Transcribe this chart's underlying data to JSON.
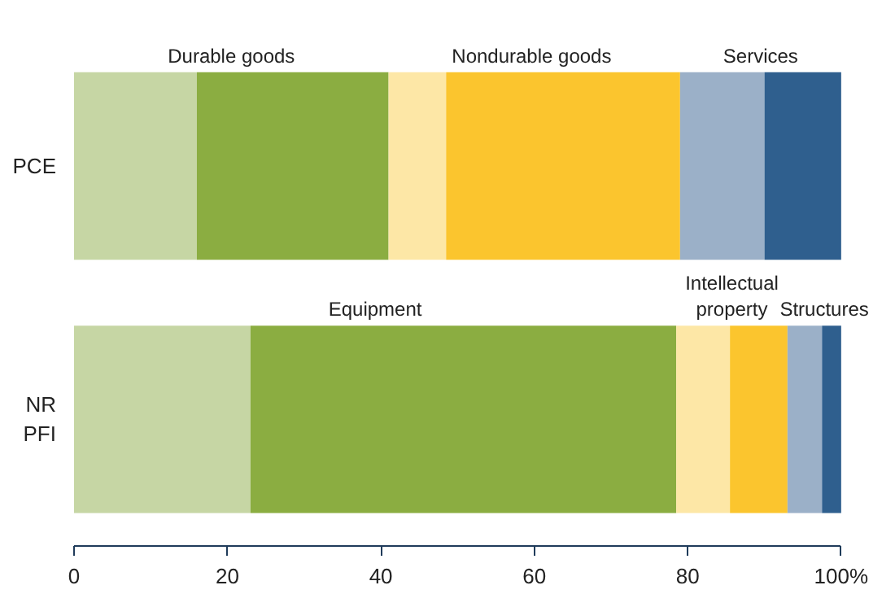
{
  "chart_data": {
    "type": "bar",
    "orientation": "horizontal",
    "stacked": true,
    "categories": [
      "PCE",
      "NR\nPFI"
    ],
    "series": [
      {
        "color": "#c6d6a4",
        "values": [
          16,
          23
        ]
      },
      {
        "color": "#8bad41",
        "values": [
          25,
          55.5
        ]
      },
      {
        "color": "#fde7a6",
        "values": [
          7.5,
          7
        ]
      },
      {
        "color": "#fbc52e",
        "values": [
          30.5,
          7.5
        ]
      },
      {
        "color": "#9bb0c8",
        "values": [
          11,
          4.5
        ]
      },
      {
        "color": "#2f5f8e",
        "values": [
          10,
          2.5
        ]
      }
    ],
    "xlim": [
      0,
      100
    ],
    "xticks": [
      0,
      20,
      40,
      60,
      80,
      {
        "value": 100,
        "label": "100%"
      }
    ],
    "grid": false,
    "annotations": [
      "Durable goods",
      "Nondurable  goods",
      "Services",
      "Equipment",
      "Intellectual\nproperty",
      "Structures"
    ]
  }
}
